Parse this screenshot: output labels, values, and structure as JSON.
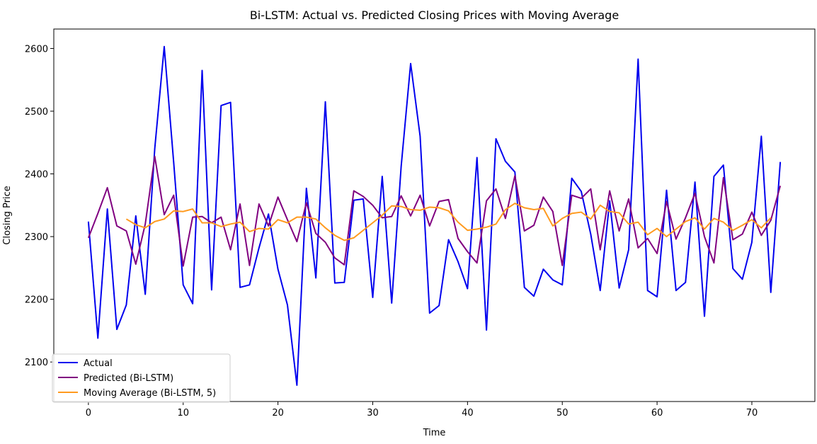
{
  "chart_data": {
    "type": "line",
    "title": "Bi-LSTM: Actual vs. Predicted Closing Prices with Moving Average",
    "xlabel": "Time",
    "ylabel": "Closing Price",
    "xlim": [
      -3.65,
      76.65
    ],
    "ylim": [
      2037,
      2631
    ],
    "xticks": [
      0,
      10,
      20,
      30,
      40,
      50,
      60,
      70
    ],
    "yticks": [
      2100,
      2200,
      2300,
      2400,
      2500,
      2600
    ],
    "grid": false,
    "legend_position": "lower-left",
    "series": [
      {
        "name": "Actual",
        "color": "#0000ee",
        "x_start": 0,
        "values": [
          2324,
          2138,
          2344,
          2152,
          2191,
          2333,
          2208,
          2440,
          2603,
          2418,
          2223,
          2193,
          2565,
          2215,
          2509,
          2514,
          2219,
          2223,
          2282,
          2336,
          2248,
          2191,
          2063,
          2377,
          2234,
          2515,
          2226,
          2227,
          2358,
          2360,
          2203,
          2396,
          2194,
          2412,
          2576,
          2460,
          2178,
          2190,
          2295,
          2260,
          2217,
          2426,
          2151,
          2456,
          2420,
          2403,
          2219,
          2205,
          2248,
          2231,
          2223,
          2393,
          2372,
          2304,
          2214,
          2357,
          2218,
          2279,
          2583,
          2214,
          2204,
          2374,
          2214,
          2227,
          2387,
          2173,
          2396,
          2414,
          2249,
          2232,
          2291,
          2460,
          2211,
          2419
        ]
      },
      {
        "name": "Predicted (Bi-LSTM)",
        "color": "#800080",
        "x_start": 0,
        "values": [
          2298,
          2337,
          2378,
          2317,
          2309,
          2256,
          2320,
          2428,
          2335,
          2366,
          2253,
          2331,
          2332,
          2322,
          2331,
          2279,
          2352,
          2254,
          2352,
          2317,
          2363,
          2327,
          2292,
          2354,
          2305,
          2291,
          2266,
          2255,
          2373,
          2364,
          2350,
          2330,
          2332,
          2365,
          2333,
          2366,
          2317,
          2356,
          2359,
          2297,
          2276,
          2258,
          2357,
          2376,
          2329,
          2397,
          2309,
          2318,
          2363,
          2340,
          2254,
          2366,
          2361,
          2376,
          2279,
          2373,
          2309,
          2360,
          2282,
          2297,
          2273,
          2356,
          2296,
          2330,
          2369,
          2300,
          2258,
          2394,
          2295,
          2304,
          2339,
          2302,
          2326,
          2381
        ]
      },
      {
        "name": "Moving Average (Bi-LSTM, 5)",
        "color": "#ff9a1f",
        "x_start": 4,
        "values": [
          2328,
          2319,
          2314,
          2324,
          2328,
          2341,
          2340,
          2344,
          2322,
          2322,
          2316,
          2320,
          2323,
          2308,
          2313,
          2312,
          2327,
          2322,
          2331,
          2331,
          2328,
          2314,
          2302,
          2294,
          2298,
          2310,
          2322,
          2334,
          2349,
          2348,
          2343,
          2342,
          2347,
          2346,
          2341,
          2323,
          2310,
          2312,
          2315,
          2320,
          2343,
          2353,
          2346,
          2343,
          2345,
          2317,
          2329,
          2337,
          2339,
          2328,
          2350,
          2340,
          2338,
          2320,
          2323,
          2303,
          2313,
          2300,
          2312,
          2324,
          2330,
          2312,
          2329,
          2323,
          2310,
          2318,
          2327,
          2314,
          2330
        ]
      }
    ]
  }
}
